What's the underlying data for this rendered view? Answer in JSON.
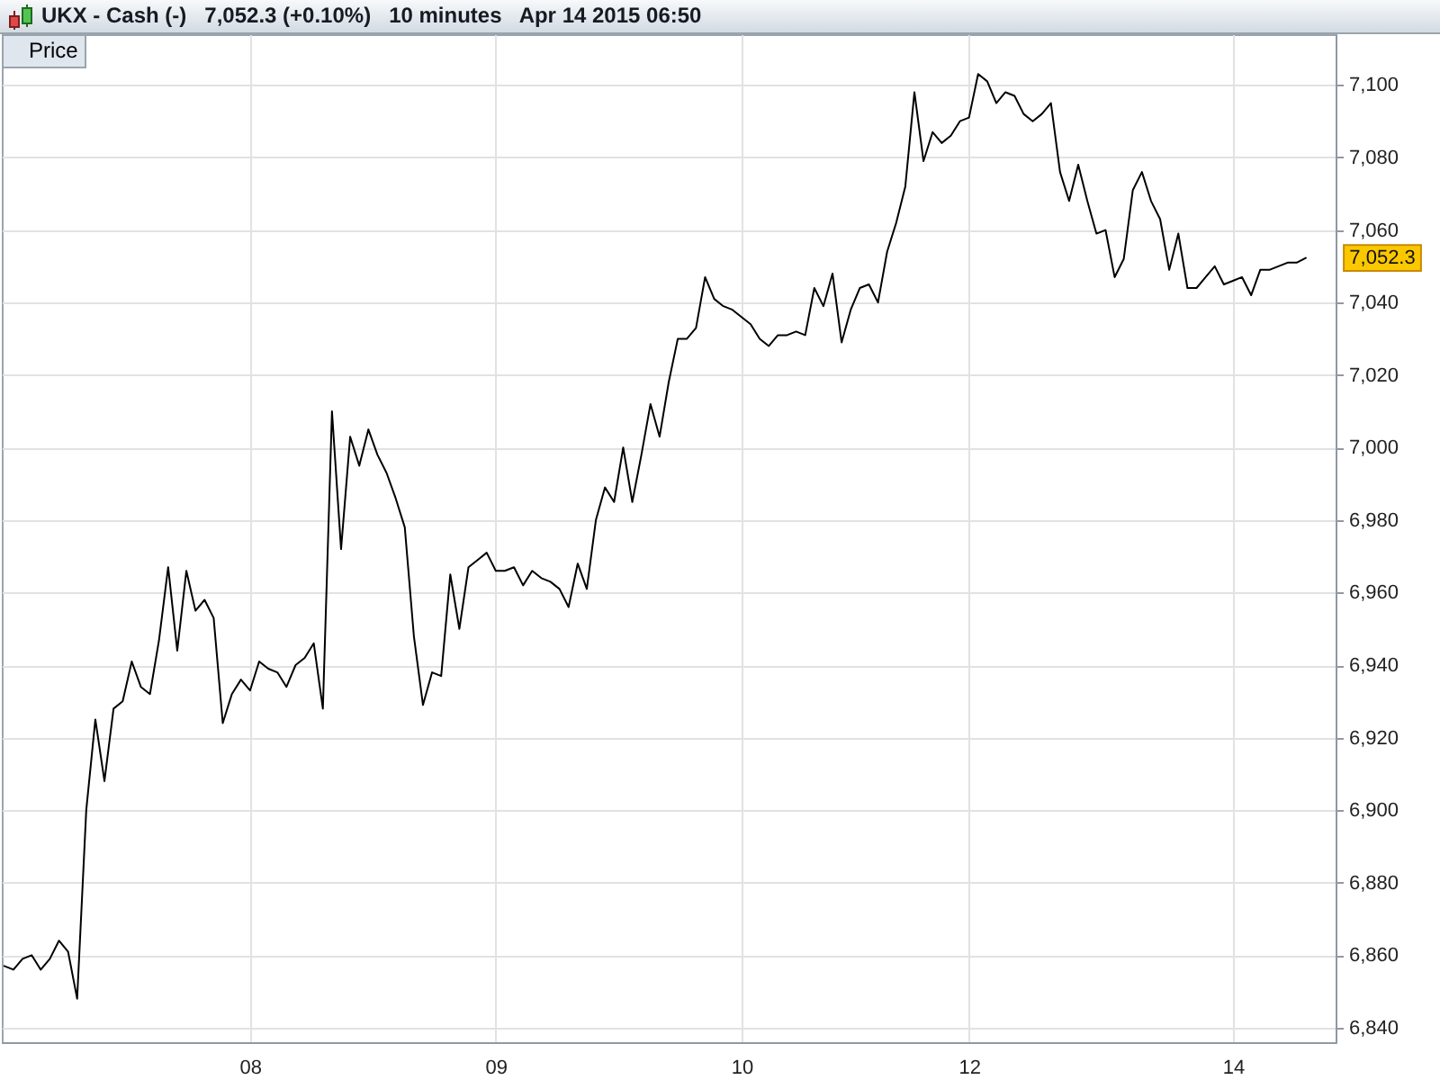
{
  "chart_data": {
    "type": "line",
    "title": "UKX - Cash (-)   7,052.3 (+0.10%)   10 minutes   Apr 14 2015 06:50",
    "categories": [
      null,
      null,
      null,
      null,
      null,
      null,
      null,
      null,
      null,
      null,
      null,
      null,
      null,
      null,
      null,
      null,
      null,
      null,
      null,
      null,
      null,
      null,
      null,
      null,
      null,
      null,
      null,
      "08",
      null,
      null,
      null,
      null,
      null,
      null,
      null,
      null,
      null,
      null,
      null,
      null,
      null,
      null,
      null,
      null,
      null,
      null,
      null,
      null,
      null,
      null,
      null,
      null,
      null,
      null,
      "09",
      null,
      null,
      null,
      null,
      null,
      null,
      null,
      null,
      null,
      null,
      null,
      null,
      null,
      null,
      null,
      null,
      null,
      null,
      null,
      null,
      null,
      null,
      null,
      null,
      null,
      null,
      "10",
      null,
      null,
      null,
      null,
      null,
      null,
      null,
      null,
      null,
      null,
      null,
      null,
      null,
      null,
      null,
      null,
      null,
      null,
      null,
      null,
      null,
      null,
      null,
      null,
      "12",
      null,
      null,
      null,
      null,
      null,
      null,
      null,
      null,
      null,
      null,
      null,
      null,
      null,
      null,
      null,
      null,
      null,
      null,
      null,
      null,
      null,
      null,
      null,
      null,
      null,
      null,
      null,
      null,
      "14",
      null,
      null,
      null,
      null,
      null,
      null,
      null,
      null,
      null,
      null,
      null
    ],
    "series": [
      {
        "name": "Price",
        "color": "#000000",
        "values": [
          6857,
          6856,
          6859,
          6860,
          6856,
          6859,
          6864,
          6861,
          6848,
          6900,
          6925,
          6908,
          6928,
          6930,
          6941,
          6934,
          6932,
          6947,
          6967,
          6944,
          6966,
          6955,
          6958,
          6953,
          6924,
          6932,
          6936,
          6933,
          6941,
          6939,
          6938,
          6934,
          6940,
          6942,
          6946,
          6928,
          7010,
          6972,
          7003,
          6995,
          7005,
          6998,
          6993,
          6986,
          6978,
          6948,
          6929,
          6938,
          6937,
          6965,
          6950,
          6967,
          6969,
          6971,
          6966,
          6966,
          6967,
          6962,
          6966,
          6964,
          6963,
          6961,
          6956,
          6968,
          6961,
          6980,
          6989,
          6985,
          7000,
          6985,
          6998,
          7012,
          7003,
          7018,
          7030,
          7030,
          7033,
          7047,
          7041,
          7039,
          7038,
          7036,
          7034,
          7030,
          7028,
          7031,
          7031,
          7032,
          7031,
          7044,
          7039,
          7048,
          7029,
          7038,
          7044,
          7045,
          7040,
          7054,
          7062,
          7072,
          7098,
          7079,
          7087,
          7084,
          7086,
          7090,
          7091,
          7103,
          7101,
          7095,
          7098,
          7097,
          7092,
          7090,
          7092,
          7095,
          7076,
          7068,
          7078,
          7068,
          7059,
          7060,
          7047,
          7052,
          7071,
          7076,
          7068,
          7063,
          7049,
          7059,
          7044,
          7044,
          7047,
          7050,
          7045,
          7046,
          7047,
          7042,
          7049,
          7049,
          7050,
          7051,
          7051,
          7052.3,
          null,
          null,
          null
        ]
      }
    ],
    "ylim": [
      6836,
      7114
    ],
    "yticks": [
      {
        "value": 6840,
        "label": "6,840"
      },
      {
        "value": 6860,
        "label": "6,860"
      },
      {
        "value": 6880,
        "label": "6,880"
      },
      {
        "value": 6900,
        "label": "6,900"
      },
      {
        "value": 6920,
        "label": "6,920"
      },
      {
        "value": 6940,
        "label": "6,940"
      },
      {
        "value": 6960,
        "label": "6,960"
      },
      {
        "value": 6980,
        "label": "6,980"
      },
      {
        "value": 7000,
        "label": "7,000"
      },
      {
        "value": 7020,
        "label": "7,020"
      },
      {
        "value": 7040,
        "label": "7,040"
      },
      {
        "value": 7060,
        "label": "7,060"
      },
      {
        "value": 7080,
        "label": "7,080"
      },
      {
        "value": 7100,
        "label": "7,100"
      }
    ],
    "grid": true,
    "legend": "top left",
    "annotations": [
      "7,052.3"
    ]
  }
}
